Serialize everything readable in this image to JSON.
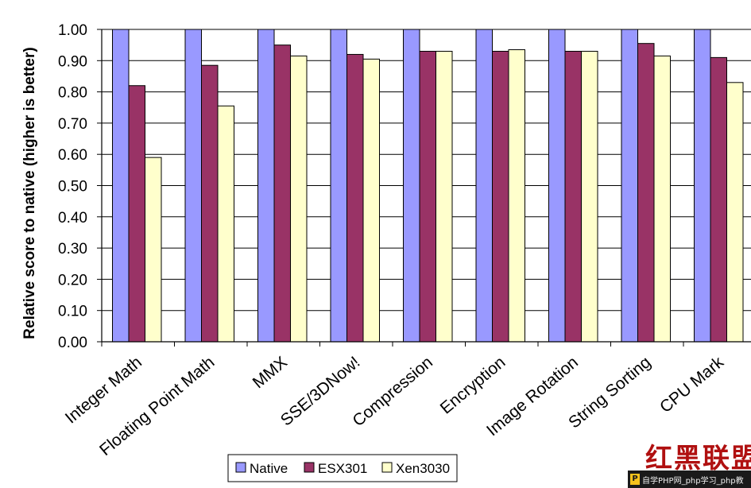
{
  "chart_data": {
    "type": "bar",
    "title": "",
    "xlabel": "",
    "ylabel": "Relative score to native (higher is better)",
    "categories": [
      "Integer Math",
      "Floating Point Math",
      "MMX",
      "SSE/3DNow!",
      "Compression",
      "Encryption",
      "Image Rotation",
      "String Sorting",
      "CPU Mark"
    ],
    "series": [
      {
        "name": "Native",
        "color": "#9999ff",
        "values": [
          1.0,
          1.0,
          1.0,
          1.0,
          1.0,
          1.0,
          1.0,
          1.0,
          1.0
        ]
      },
      {
        "name": "ESX301",
        "color": "#993366",
        "values": [
          0.82,
          0.885,
          0.95,
          0.92,
          0.93,
          0.93,
          0.93,
          0.955,
          0.91
        ]
      },
      {
        "name": "Xen3030",
        "color": "#ffffcc",
        "values": [
          0.59,
          0.755,
          0.915,
          0.905,
          0.93,
          0.935,
          0.93,
          0.915,
          0.83
        ]
      }
    ],
    "yticks": [
      "0.00",
      "0.10",
      "0.20",
      "0.30",
      "0.40",
      "0.50",
      "0.60",
      "0.70",
      "0.80",
      "0.90",
      "1.00"
    ],
    "ylim": [
      0,
      1.0
    ],
    "grid": "horizontal",
    "legend_position": "bottom"
  },
  "watermark": {
    "text": "红黑联盟",
    "footer_text": "自学PHP网_php学习_php教",
    "footer_icon": "P"
  }
}
